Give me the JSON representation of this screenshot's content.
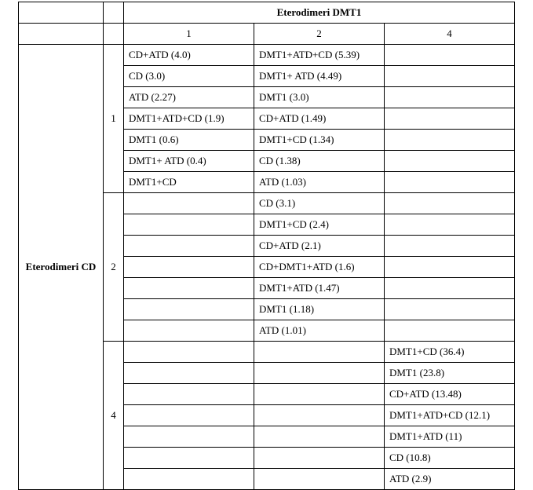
{
  "table": {
    "top_title": "Eterodimeri DMT1",
    "col_headers": [
      "1",
      "2",
      "4"
    ],
    "row_header": "Eterodimeri CD",
    "row_groups": [
      "1",
      "2",
      "4"
    ],
    "sections": {
      "g1": {
        "col1": [
          "CD+ATD (4.0)",
          "CD (3.0)",
          "ATD (2.27)",
          "DMT1+ATD+CD (1.9)",
          "DMT1 (0.6)",
          "DMT1+ ATD (0.4)",
          "DMT1+CD"
        ],
        "col2": [
          "DMT1+ATD+CD (5.39)",
          "DMT1+ ATD (4.49)",
          "DMT1 (3.0)",
          "CD+ATD (1.49)",
          "DMT1+CD (1.34)",
          "CD (1.38)",
          "ATD (1.03)"
        ],
        "col3": [
          "",
          "",
          "",
          "",
          "",
          "",
          ""
        ]
      },
      "g2": {
        "col1": [
          "",
          "",
          "",
          "",
          "",
          "",
          ""
        ],
        "col2": [
          "CD (3.1)",
          "DMT1+CD (2.4)",
          "CD+ATD (2.1)",
          "CD+DMT1+ATD (1.6)",
          "DMT1+ATD (1.47)",
          "DMT1 (1.18)",
          "ATD (1.01)"
        ],
        "col3": [
          "",
          "",
          "",
          "",
          "",
          "",
          ""
        ]
      },
      "g4": {
        "col1": [
          "",
          "",
          "",
          "",
          "",
          "",
          ""
        ],
        "col2": [
          "",
          "",
          "",
          "",
          "",
          "",
          ""
        ],
        "col3": [
          "DMT1+CD (36.4)",
          "DMT1 (23.8)",
          "CD+ATD (13.48)",
          "DMT1+ATD+CD (12.1)",
          "DMT1+ATD (11)",
          "CD (10.8)",
          "ATD (2.9)"
        ]
      }
    }
  }
}
